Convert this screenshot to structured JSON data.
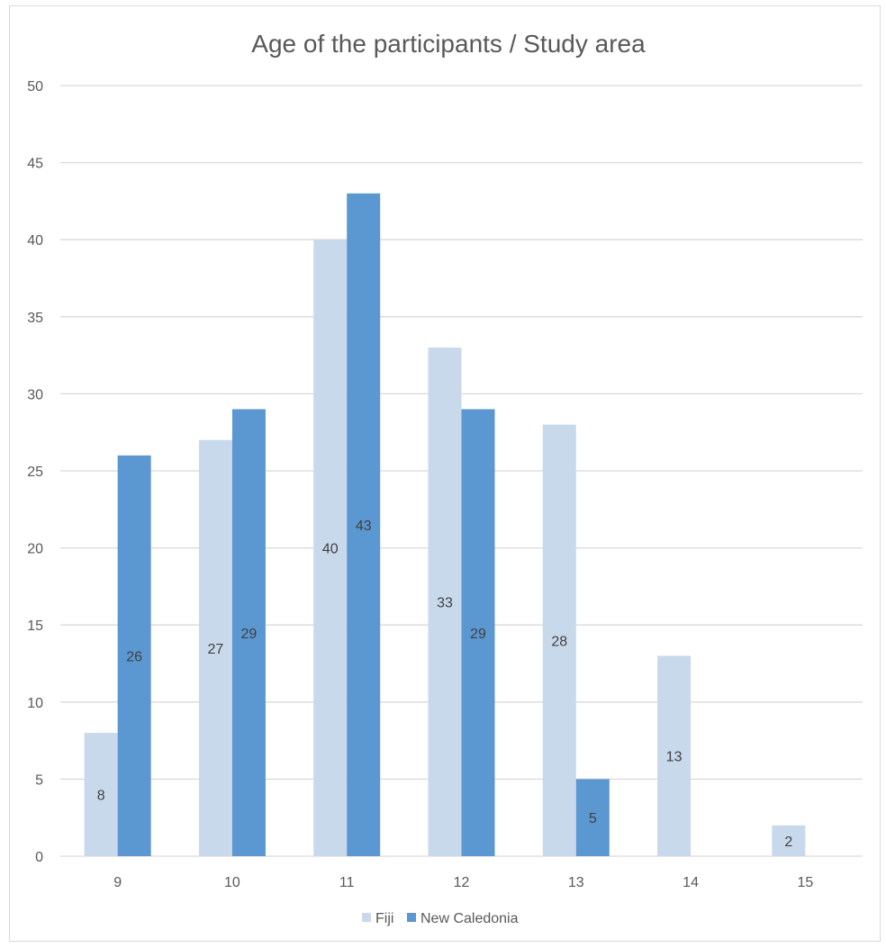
{
  "chart_data": {
    "type": "bar",
    "title": "Age of the participants / Study area",
    "xlabel": "",
    "ylabel": "",
    "categories": [
      "9",
      "10",
      "11",
      "12",
      "13",
      "14",
      "15"
    ],
    "series": [
      {
        "name": "Fiji",
        "values": [
          8,
          27,
          40,
          33,
          28,
          13,
          2
        ],
        "labels": [
          "8",
          "27",
          "40",
          "33",
          "28",
          "13",
          "2"
        ],
        "color": "#c9d9ec"
      },
      {
        "name": "New Caledonia",
        "values": [
          26,
          29,
          43,
          29,
          5,
          null,
          null
        ],
        "labels": [
          "26",
          "29",
          "43",
          "29",
          "5",
          "",
          ""
        ],
        "color": "#5b97d1"
      }
    ],
    "ylim": [
      0,
      50
    ],
    "yticks": [
      "0",
      "5",
      "10",
      "15",
      "20",
      "25",
      "30",
      "35",
      "40",
      "45",
      "50"
    ],
    "grid": true,
    "legend_position": "bottom",
    "gridline_color": "#d9d9d9"
  }
}
